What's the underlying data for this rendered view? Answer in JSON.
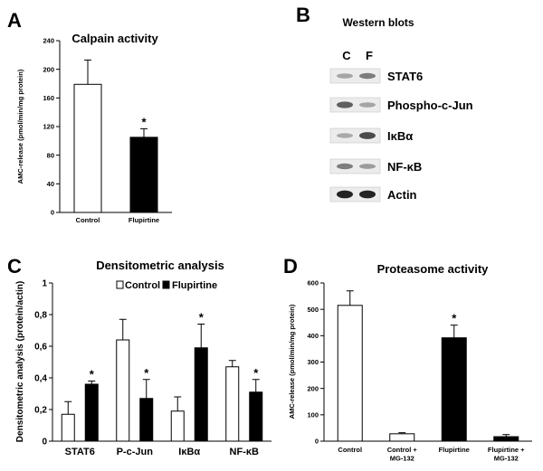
{
  "panels": {
    "a": {
      "letter": "A",
      "title": "Calpain activity"
    },
    "b": {
      "letter": "B",
      "title": "Western blots",
      "lane_labels": [
        "C",
        "F"
      ]
    },
    "c": {
      "letter": "C",
      "title": "Densitometric analysis"
    },
    "d": {
      "letter": "D",
      "title": "Proteasome activity"
    }
  },
  "western_blot": {
    "bands": [
      {
        "protein": "STAT6",
        "intensity_c": 0.3,
        "intensity_f": 0.5
      },
      {
        "protein": "Phospho-c-Jun",
        "intensity_c": 0.65,
        "intensity_f": 0.3
      },
      {
        "protein": "IκBα",
        "intensity_c": 0.28,
        "intensity_f": 0.75
      },
      {
        "protein": "NF-κB",
        "intensity_c": 0.5,
        "intensity_f": 0.35
      },
      {
        "protein": "Actin",
        "intensity_c": 0.95,
        "intensity_f": 0.95
      }
    ]
  },
  "chart_data": [
    {
      "panel": "A",
      "type": "bar",
      "title": "Calpain activity",
      "ylabel": "AMC-release (pmol/min/mg protein)",
      "xlabel": "",
      "ylim": [
        0,
        240
      ],
      "yticks": [
        0,
        40,
        80,
        120,
        160,
        200,
        240
      ],
      "categories": [
        "Control",
        "Flupirtine"
      ],
      "values": [
        179,
        105
      ],
      "errors": [
        34,
        12
      ],
      "fills": [
        "#ffffff",
        "#000000"
      ],
      "significant": [
        false,
        true
      ],
      "marker": "*",
      "grid": false
    },
    {
      "panel": "C",
      "type": "bar",
      "title": "Densitometric analysis",
      "ylabel": "Densitometric analysis (protein/actin)",
      "xlabel": "",
      "ylim": [
        0,
        1
      ],
      "yticks": [
        "0",
        "0,2",
        "0,4",
        "0,6",
        "0,8",
        "1"
      ],
      "categories": [
        "STAT6",
        "P-c-Jun",
        "IκBα",
        "NF-κB"
      ],
      "series": [
        {
          "name": "Control",
          "values": [
            0.17,
            0.64,
            0.19,
            0.47
          ],
          "errors": [
            0.08,
            0.13,
            0.09,
            0.04
          ],
          "fill": "#ffffff",
          "significant": [
            false,
            false,
            false,
            false
          ]
        },
        {
          "name": "Flupirtine",
          "values": [
            0.36,
            0.27,
            0.59,
            0.31
          ],
          "errors": [
            0.02,
            0.12,
            0.15,
            0.08
          ],
          "fill": "#000000",
          "significant": [
            true,
            true,
            true,
            true
          ]
        }
      ],
      "marker": "*",
      "legend": "top",
      "grid": false
    },
    {
      "panel": "D",
      "type": "bar",
      "title": "Proteasome activity",
      "ylabel": "AMC-release (pmol/min/mg protein)",
      "xlabel": "",
      "ylim": [
        0,
        600
      ],
      "yticks": [
        0,
        100,
        200,
        300,
        400,
        500,
        600
      ],
      "categories": [
        [
          "Control"
        ],
        [
          "Control +",
          "MG-132"
        ],
        [
          "Flupirtine"
        ],
        [
          "Flupirtine +",
          "MG-132"
        ]
      ],
      "values": [
        515,
        28,
        392,
        17
      ],
      "errors": [
        55,
        4,
        48,
        8
      ],
      "fills": [
        "#ffffff",
        "#ffffff",
        "#000000",
        "#000000"
      ],
      "significant": [
        false,
        false,
        true,
        false
      ],
      "marker": "*",
      "grid": false
    }
  ]
}
